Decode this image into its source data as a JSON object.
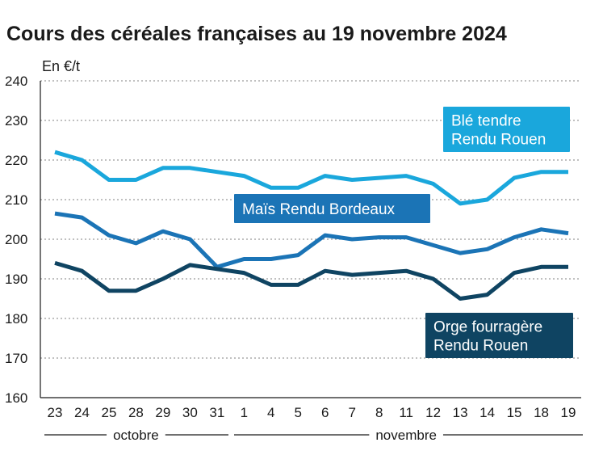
{
  "title": "Cours des céréales françaises au 19 novembre 2024",
  "chart_data": {
    "type": "line",
    "title": "Cours des céréales françaises au 19 novembre 2024",
    "ylabel": "En €/t",
    "ylim": [
      160,
      240
    ],
    "yticks": [
      160,
      170,
      180,
      190,
      200,
      210,
      220,
      230,
      240
    ],
    "grid": true,
    "categories": [
      "23",
      "24",
      "25",
      "28",
      "29",
      "30",
      "31",
      "1",
      "4",
      "5",
      "6",
      "7",
      "8",
      "11",
      "12",
      "13",
      "14",
      "15",
      "18",
      "19"
    ],
    "months": [
      {
        "label": "octobre",
        "from": 0,
        "to": 6
      },
      {
        "label": "novembre",
        "from": 7,
        "to": 19
      }
    ],
    "series": [
      {
        "name": "Blé tendre Rendu Rouen",
        "label_lines": [
          "Blé tendre",
          "Rendu Rouen"
        ],
        "color": "#1aa7dc",
        "values": [
          222,
          220,
          215,
          215,
          218,
          218,
          217,
          216,
          213,
          213,
          216,
          215,
          215.5,
          216,
          214,
          209,
          210,
          215.5,
          217,
          217
        ]
      },
      {
        "name": "Maïs Rendu Bordeaux",
        "label_lines": [
          "Maïs Rendu Bordeaux"
        ],
        "color": "#1b74b6",
        "values": [
          206.5,
          205.5,
          201,
          199,
          202,
          200,
          193,
          195,
          195,
          196,
          201,
          200,
          200.5,
          200.5,
          198.5,
          196.5,
          197.5,
          200.5,
          202.5,
          201.5
        ]
      },
      {
        "name": "Orge fourragère Rendu Rouen",
        "label_lines": [
          "Orge fourragère",
          "Rendu Rouen"
        ],
        "color": "#0f4462",
        "values": [
          194,
          192,
          187,
          187,
          190,
          193.5,
          192.5,
          191.5,
          188.5,
          188.5,
          192,
          191,
          191.5,
          192,
          190,
          185,
          186,
          191.5,
          193,
          193
        ]
      }
    ]
  }
}
